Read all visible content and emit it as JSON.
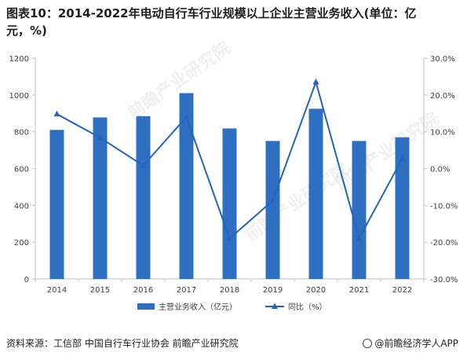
{
  "title_line1": "图表10：2014-2022年电动自行车行业规模以上企业主营业务收入(单位：亿",
  "title_line2": "元，%)",
  "source": "资料来源：工信部 中国自行车行业协会 前瞻产业研究院",
  "brand": "@前瞻经济学人APP",
  "watermark": "前瞻产业研究院",
  "colors": {
    "bar": "#2e6fc1",
    "line": "#2264c0",
    "axis": "#bfbfbf",
    "text": "#404040"
  },
  "chart_data": {
    "type": "bar",
    "categories": [
      "2014",
      "2015",
      "2016",
      "2017",
      "2018",
      "2019",
      "2020",
      "2021",
      "2022"
    ],
    "series": [
      {
        "name": "主营业务收入（亿元）",
        "type": "bar",
        "axis": "left",
        "values": [
          810,
          878,
          885,
          1010,
          818,
          750,
          925,
          750,
          770
        ]
      },
      {
        "name": "同比（%）",
        "type": "line",
        "axis": "right",
        "marker": "triangle",
        "values": [
          14.8,
          8.4,
          0.8,
          14.0,
          -19.0,
          -8.7,
          23.5,
          -19.0,
          2.7
        ]
      }
    ],
    "ylim_left": [
      0,
      1200
    ],
    "yticks_left": [
      "0",
      "200",
      "400",
      "600",
      "800",
      "1000",
      "1200"
    ],
    "ylim_right": [
      -30,
      30
    ],
    "yticks_right": [
      "-30.0%",
      "-20.0%",
      "-10.0%",
      "0.0%",
      "10.0%",
      "20.0%",
      "30.0%"
    ],
    "legend_position": "bottom-center"
  }
}
